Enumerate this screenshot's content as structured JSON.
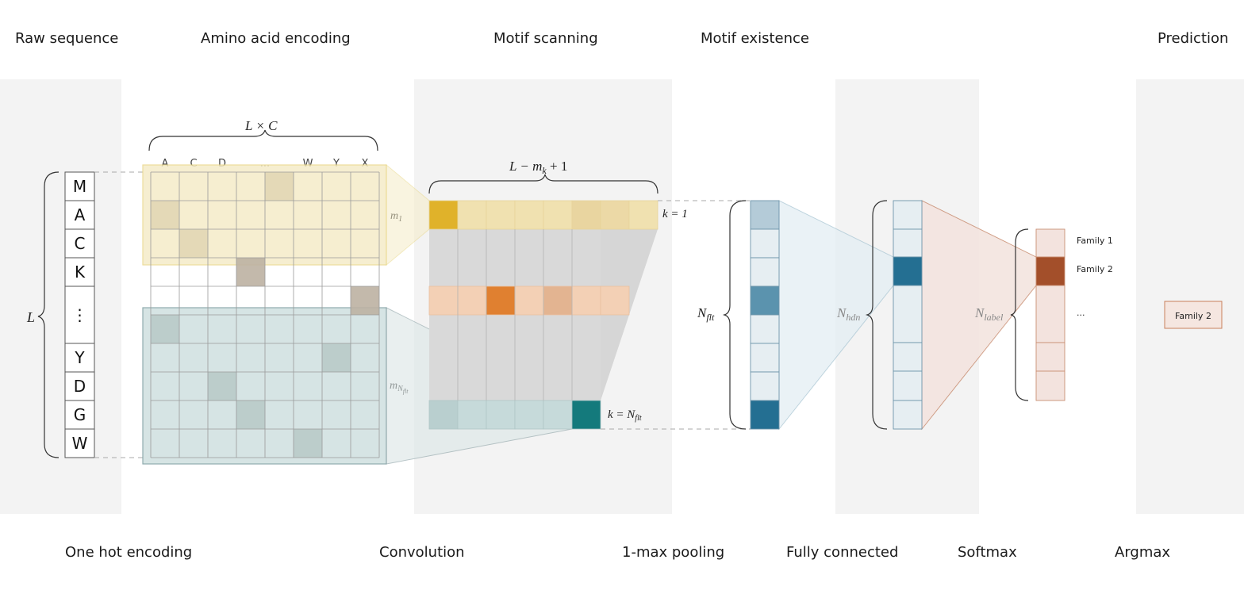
{
  "stages_top": {
    "raw_sequence": "Raw sequence",
    "amino_acid_encoding": "Amino acid encoding",
    "motif_scanning": "Motif scanning",
    "motif_existence": "Motif existence",
    "prediction": "Prediction"
  },
  "stages_bottom": {
    "one_hot": "One hot encoding",
    "convolution": "Convolution",
    "max_pooling": "1-max pooling",
    "fully_connected": "Fully connected",
    "softmax": "Softmax",
    "argmax": "Argmax"
  },
  "sequence": [
    "M",
    "A",
    "C",
    "K",
    "⋮",
    "Y",
    "D",
    "G",
    "W"
  ],
  "seq_length_label": "L",
  "encoding": {
    "columns": [
      "A",
      "C",
      "D",
      "...",
      "W",
      "Y",
      "X"
    ],
    "dims_base": "L × C",
    "motif1_label": "m",
    "motif1_sub": "1",
    "motifN_label": "m",
    "motifN_sub": "N",
    "motifN_subsub": "flt"
  },
  "scanning": {
    "width_label": "L − m",
    "width_sub": "k",
    "width_suffix": " + 1",
    "k1_label": "k = 1",
    "kN_label": "k = N",
    "kN_sub": "flt"
  },
  "pooling": {
    "label": "N",
    "sub": "flt"
  },
  "hidden": {
    "label": "N",
    "sub": "hdn"
  },
  "softmax": {
    "label": "N",
    "sub": "label",
    "families": [
      "Family 1",
      "Family 2",
      "..."
    ]
  },
  "prediction_value": "Family 2",
  "colors": {
    "panel": "#f3f3f3",
    "yellow": "#e0b22a",
    "orange": "#e08030",
    "teal": "#147a7c",
    "blue": "#246f92",
    "rust": "#a34f2a"
  }
}
